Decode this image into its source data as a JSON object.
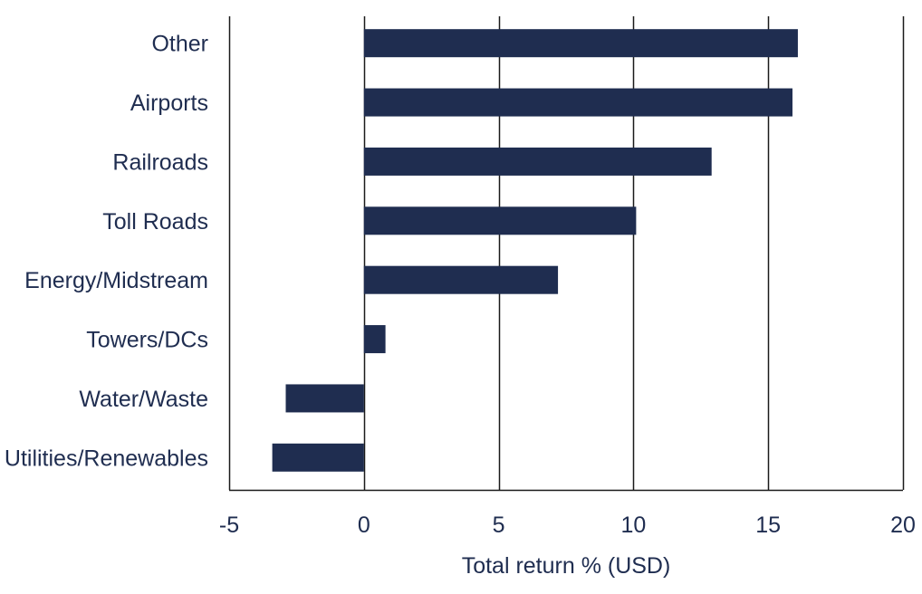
{
  "chart_data": {
    "type": "bar",
    "orientation": "horizontal",
    "title": "",
    "xlabel": "Total return % (USD)",
    "ylabel": "",
    "categories": [
      "Other",
      "Airports",
      "Railroads",
      "Toll Roads",
      "Energy/Midstream",
      "Towers/DCs",
      "Water/Waste",
      "Utilities/Renewables"
    ],
    "values": [
      16.1,
      15.9,
      12.9,
      10.1,
      7.2,
      0.8,
      -2.9,
      -3.4
    ],
    "xlim": [
      -5,
      20
    ],
    "xticks": [
      -5,
      0,
      5,
      10,
      15,
      20
    ],
    "xtick_labels": [
      "-5",
      "0",
      "5",
      "10",
      "15",
      "20"
    ],
    "grid": "vertical",
    "legend": "none",
    "colors": {
      "bar": "#1f2d50",
      "grid": "#1a1a1a",
      "text": "#1f2d50"
    }
  }
}
